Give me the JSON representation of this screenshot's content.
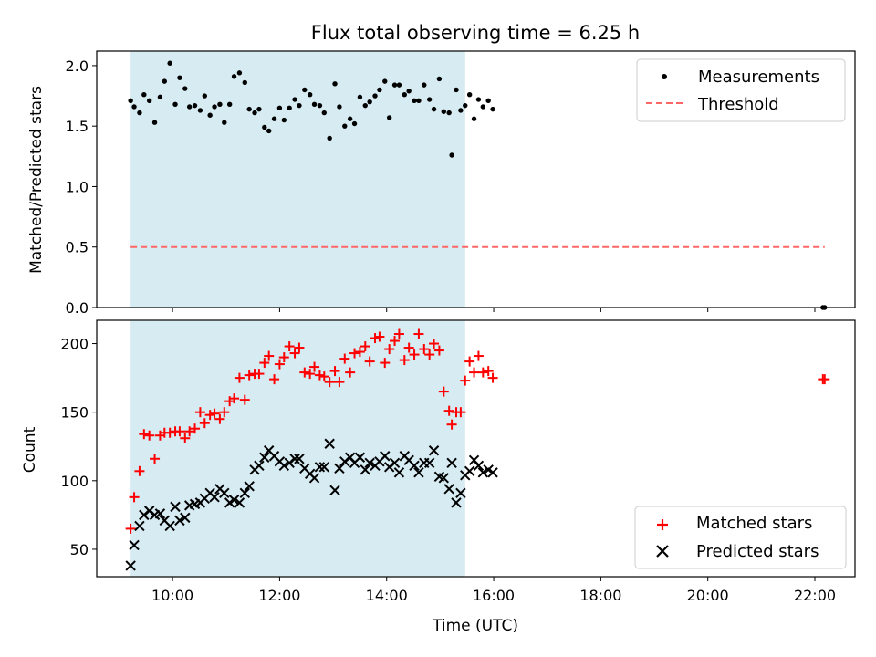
{
  "chart_data": [
    {
      "type": "scatter",
      "title": "Flux total observing time = 6.25 h",
      "xlabel": "",
      "ylabel": "Matched/Predicted stars",
      "xlim": [
        "08:35",
        "22:45"
      ],
      "ylim": [
        0,
        2.12
      ],
      "yticks": [
        0.0,
        0.5,
        1.0,
        1.5,
        2.0
      ],
      "ytick_labels": [
        "0.0",
        "0.5",
        "1.0",
        "1.5",
        "2.0"
      ],
      "grid": false,
      "legend_position": "upper right",
      "shaded_span": {
        "start": "09:13",
        "end": "15:28",
        "color": "#add8e6"
      },
      "series": [
        {
          "name": "Measurements",
          "kind": "scatter",
          "marker": "dot",
          "color": "#000000",
          "points": [
            [
              "09:13",
              1.71
            ],
            [
              "09:17",
              1.66
            ],
            [
              "09:23",
              1.61
            ],
            [
              "09:28",
              1.76
            ],
            [
              "09:34",
              1.71
            ],
            [
              "09:40",
              1.53
            ],
            [
              "09:46",
              1.74
            ],
            [
              "09:51",
              1.87
            ],
            [
              "09:57",
              2.02
            ],
            [
              "10:03",
              1.68
            ],
            [
              "10:08",
              1.9
            ],
            [
              "10:14",
              1.81
            ],
            [
              "10:19",
              1.66
            ],
            [
              "10:25",
              1.67
            ],
            [
              "10:31",
              1.63
            ],
            [
              "10:36",
              1.75
            ],
            [
              "10:42",
              1.59
            ],
            [
              "10:47",
              1.66
            ],
            [
              "10:53",
              1.68
            ],
            [
              "10:58",
              1.53
            ],
            [
              "11:04",
              1.68
            ],
            [
              "11:09",
              1.91
            ],
            [
              "11:15",
              1.94
            ],
            [
              "11:21",
              1.86
            ],
            [
              "11:26",
              1.64
            ],
            [
              "11:32",
              1.61
            ],
            [
              "11:37",
              1.64
            ],
            [
              "11:43",
              1.49
            ],
            [
              "11:48",
              1.46
            ],
            [
              "11:54",
              1.56
            ],
            [
              "12:00",
              1.65
            ],
            [
              "12:05",
              1.55
            ],
            [
              "12:11",
              1.65
            ],
            [
              "12:17",
              1.72
            ],
            [
              "12:22",
              1.67
            ],
            [
              "12:28",
              1.8
            ],
            [
              "12:34",
              1.76
            ],
            [
              "12:39",
              1.68
            ],
            [
              "12:45",
              1.67
            ],
            [
              "12:50",
              1.61
            ],
            [
              "12:56",
              1.4
            ],
            [
              "13:02",
              1.85
            ],
            [
              "13:07",
              1.66
            ],
            [
              "13:13",
              1.5
            ],
            [
              "13:19",
              1.56
            ],
            [
              "13:24",
              1.52
            ],
            [
              "13:30",
              1.74
            ],
            [
              "13:36",
              1.67
            ],
            [
              "13:41",
              1.7
            ],
            [
              "13:47",
              1.75
            ],
            [
              "13:52",
              1.8
            ],
            [
              "13:58",
              1.87
            ],
            [
              "14:03",
              1.57
            ],
            [
              "14:09",
              1.84
            ],
            [
              "14:14",
              1.84
            ],
            [
              "14:20",
              1.76
            ],
            [
              "14:25",
              1.79
            ],
            [
              "14:31",
              1.71
            ],
            [
              "14:36",
              1.71
            ],
            [
              "14:42",
              1.84
            ],
            [
              "14:48",
              1.72
            ],
            [
              "14:53",
              1.64
            ],
            [
              "14:59",
              1.89
            ],
            [
              "15:04",
              1.62
            ],
            [
              "15:10",
              1.61
            ],
            [
              "15:13",
              1.26
            ],
            [
              "15:18",
              1.8
            ],
            [
              "15:23",
              1.63
            ],
            [
              "15:28",
              1.67
            ],
            [
              "15:33",
              1.76
            ],
            [
              "15:38",
              1.56
            ],
            [
              "15:43",
              1.72
            ],
            [
              "15:48",
              1.66
            ],
            [
              "15:54",
              1.71
            ],
            [
              "15:59",
              1.64
            ],
            [
              "22:09",
              0.0
            ],
            [
              "22:11",
              0.0
            ]
          ]
        },
        {
          "name": "Threshold",
          "kind": "line",
          "style": "dashed",
          "color": "#ff6666",
          "points": [
            [
              "09:13",
              0.5
            ],
            [
              "22:11",
              0.5
            ]
          ]
        }
      ]
    },
    {
      "type": "scatter",
      "title": "",
      "xlabel": "Time (UTC)",
      "ylabel": "Count",
      "xlim": [
        "08:35",
        "22:45"
      ],
      "ylim": [
        30,
        217
      ],
      "yticks": [
        50,
        100,
        150,
        200
      ],
      "ytick_labels": [
        "50",
        "100",
        "150",
        "200"
      ],
      "xticks": [
        "10:00",
        "12:00",
        "14:00",
        "16:00",
        "18:00",
        "20:00",
        "22:00"
      ],
      "grid": false,
      "legend_position": "lower right",
      "shaded_span": {
        "start": "09:13",
        "end": "15:28",
        "color": "#add8e6"
      },
      "series": [
        {
          "name": "Matched stars",
          "kind": "scatter",
          "marker": "plus",
          "color": "#ff0000",
          "points": [
            [
              "09:13",
              65
            ],
            [
              "09:17",
              88
            ],
            [
              "09:23",
              107
            ],
            [
              "09:28",
              134
            ],
            [
              "09:34",
              133
            ],
            [
              "09:40",
              116
            ],
            [
              "09:46",
              133
            ],
            [
              "09:51",
              135
            ],
            [
              "09:57",
              135
            ],
            [
              "10:03",
              136
            ],
            [
              "10:08",
              136
            ],
            [
              "10:14",
              131
            ],
            [
              "10:19",
              136
            ],
            [
              "10:25",
              138
            ],
            [
              "10:31",
              150
            ],
            [
              "10:36",
              142
            ],
            [
              "10:42",
              148
            ],
            [
              "10:47",
              149
            ],
            [
              "10:53",
              145
            ],
            [
              "10:58",
              150
            ],
            [
              "11:04",
              158
            ],
            [
              "11:09",
              160
            ],
            [
              "11:15",
              175
            ],
            [
              "11:21",
              159
            ],
            [
              "11:26",
              177
            ],
            [
              "11:32",
              178
            ],
            [
              "11:37",
              178
            ],
            [
              "11:43",
              186
            ],
            [
              "11:48",
              191
            ],
            [
              "11:54",
              174
            ],
            [
              "12:00",
              185
            ],
            [
              "12:05",
              190
            ],
            [
              "12:11",
              198
            ],
            [
              "12:17",
              193
            ],
            [
              "12:22",
              197
            ],
            [
              "12:28",
              179
            ],
            [
              "12:34",
              178
            ],
            [
              "12:39",
              183
            ],
            [
              "12:45",
              177
            ],
            [
              "12:50",
              176
            ],
            [
              "12:56",
              172
            ],
            [
              "13:02",
              180
            ],
            [
              "13:07",
              172
            ],
            [
              "13:13",
              189
            ],
            [
              "13:19",
              179
            ],
            [
              "13:24",
              193
            ],
            [
              "13:30",
              194
            ],
            [
              "13:36",
              198
            ],
            [
              "13:41",
              187
            ],
            [
              "13:47",
              204
            ],
            [
              "13:52",
              205
            ],
            [
              "13:58",
              186
            ],
            [
              "14:03",
              196
            ],
            [
              "14:09",
              202
            ],
            [
              "14:14",
              207
            ],
            [
              "14:20",
              188
            ],
            [
              "14:25",
              197
            ],
            [
              "14:31",
              192
            ],
            [
              "14:36",
              207
            ],
            [
              "14:42",
              196
            ],
            [
              "14:48",
              192
            ],
            [
              "14:53",
              200
            ],
            [
              "14:59",
              195
            ],
            [
              "15:04",
              165
            ],
            [
              "15:10",
              151
            ],
            [
              "15:13",
              141
            ],
            [
              "15:18",
              150
            ],
            [
              "15:23",
              150
            ],
            [
              "15:28",
              173
            ],
            [
              "15:33",
              187
            ],
            [
              "15:38",
              179
            ],
            [
              "15:43",
              191
            ],
            [
              "15:48",
              179
            ],
            [
              "15:54",
              180
            ],
            [
              "15:59",
              175
            ],
            [
              "22:09",
              174
            ],
            [
              "22:11",
              174
            ]
          ]
        },
        {
          "name": "Predicted stars",
          "kind": "scatter",
          "marker": "x",
          "color": "#000000",
          "points": [
            [
              "09:13",
              38
            ],
            [
              "09:17",
              53
            ],
            [
              "09:23",
              67
            ],
            [
              "09:28",
              75
            ],
            [
              "09:34",
              78
            ],
            [
              "09:40",
              75
            ],
            [
              "09:46",
              76
            ],
            [
              "09:51",
              71
            ],
            [
              "09:57",
              67
            ],
            [
              "10:03",
              81
            ],
            [
              "10:08",
              71
            ],
            [
              "10:14",
              73
            ],
            [
              "10:19",
              82
            ],
            [
              "10:25",
              83
            ],
            [
              "10:31",
              84
            ],
            [
              "10:36",
              87
            ],
            [
              "10:42",
              91
            ],
            [
              "10:47",
              88
            ],
            [
              "10:53",
              94
            ],
            [
              "10:58",
              91
            ],
            [
              "11:04",
              84
            ],
            [
              "11:09",
              86
            ],
            [
              "11:15",
              84
            ],
            [
              "11:21",
              91
            ],
            [
              "11:26",
              96
            ],
            [
              "11:32",
              108
            ],
            [
              "11:37",
              111
            ],
            [
              "11:43",
              117
            ],
            [
              "11:48",
              122
            ],
            [
              "11:54",
              118
            ],
            [
              "12:00",
              114
            ],
            [
              "12:05",
              111
            ],
            [
              "12:11",
              113
            ],
            [
              "12:17",
              116
            ],
            [
              "12:22",
              116
            ],
            [
              "12:28",
              109
            ],
            [
              "12:34",
              105
            ],
            [
              "12:39",
              102
            ],
            [
              "12:45",
              110
            ],
            [
              "12:50",
              110
            ],
            [
              "12:56",
              127
            ],
            [
              "13:02",
              93
            ],
            [
              "13:07",
              109
            ],
            [
              "13:13",
              114
            ],
            [
              "13:19",
              117
            ],
            [
              "13:24",
              113
            ],
            [
              "13:30",
              117
            ],
            [
              "13:36",
              108
            ],
            [
              "13:41",
              113
            ],
            [
              "13:47",
              111
            ],
            [
              "13:52",
              114
            ],
            [
              "13:58",
              118
            ],
            [
              "14:03",
              110
            ],
            [
              "14:09",
              113
            ],
            [
              "14:14",
              106
            ],
            [
              "14:20",
              118
            ],
            [
              "14:25",
              115
            ],
            [
              "14:31",
              111
            ],
            [
              "14:36",
              106
            ],
            [
              "14:42",
              113
            ],
            [
              "14:48",
              113
            ],
            [
              "14:53",
              122
            ],
            [
              "14:59",
              103
            ],
            [
              "15:04",
              102
            ],
            [
              "15:10",
              94
            ],
            [
              "15:13",
              113
            ],
            [
              "15:18",
              84
            ],
            [
              "15:23",
              91
            ],
            [
              "15:28",
              104
            ],
            [
              "15:33",
              107
            ],
            [
              "15:38",
              115
            ],
            [
              "15:43",
              111
            ],
            [
              "15:48",
              106
            ],
            [
              "15:54",
              108
            ],
            [
              "15:59",
              106
            ]
          ]
        }
      ]
    }
  ]
}
